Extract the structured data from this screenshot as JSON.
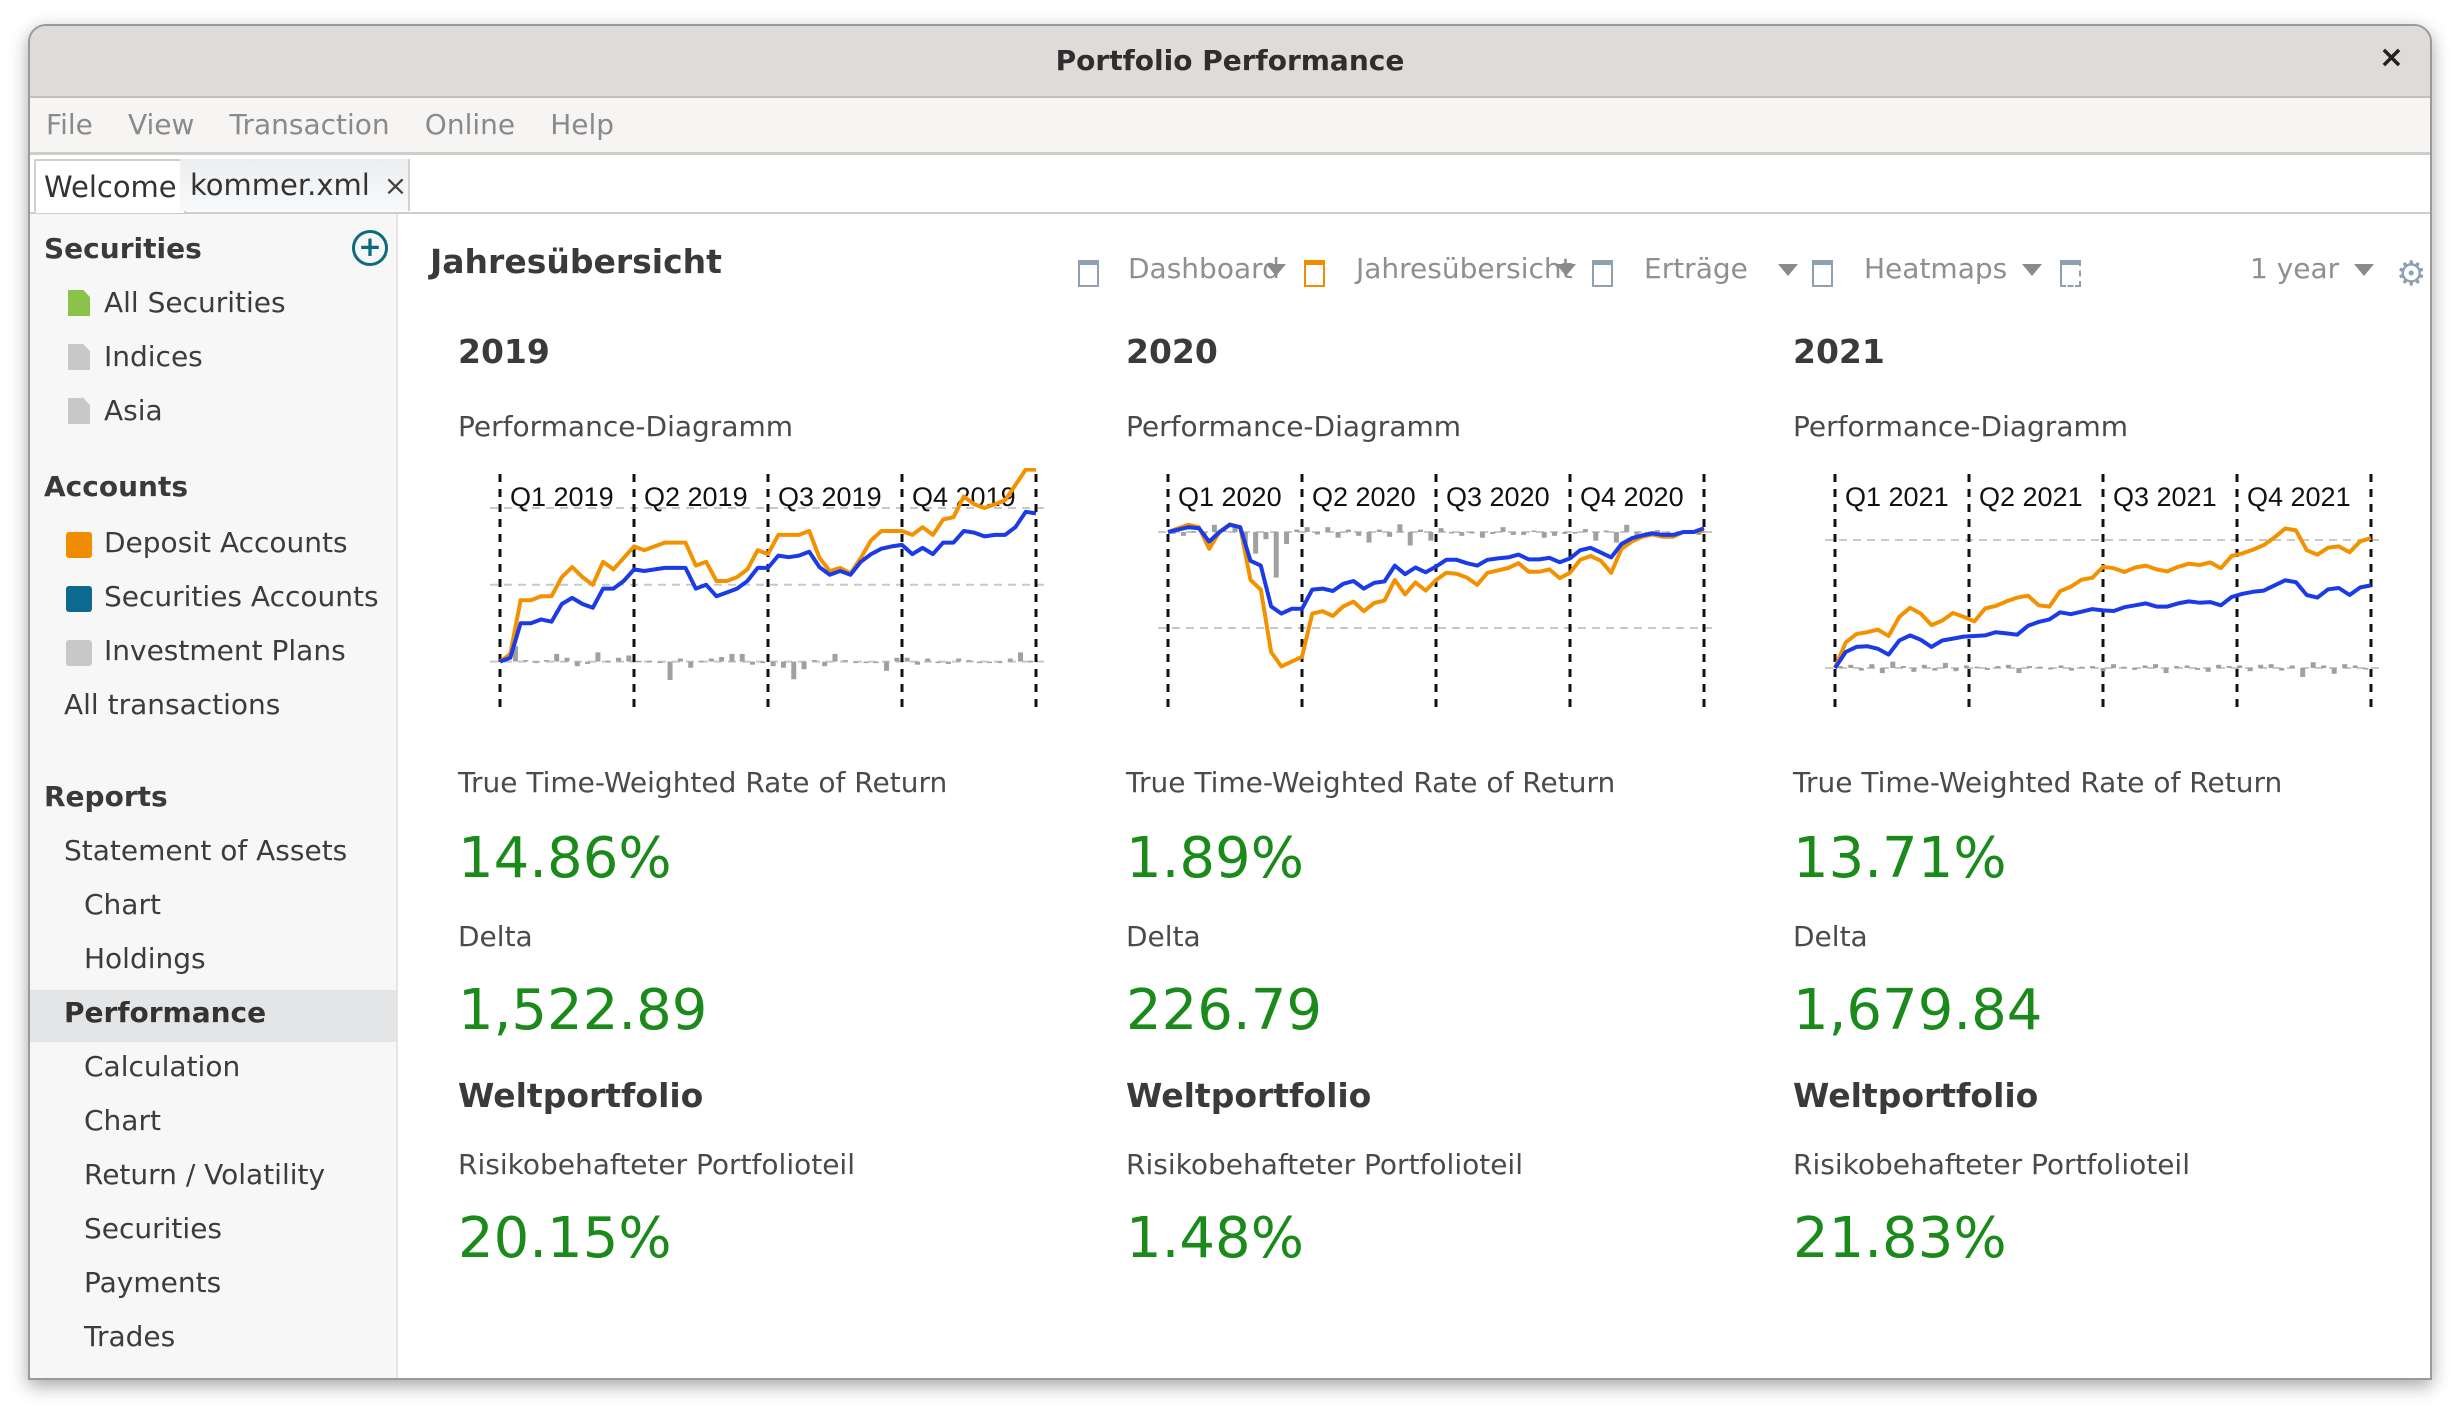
{
  "window": {
    "title": "Portfolio Performance",
    "close_label": "×"
  },
  "menu": [
    "File",
    "View",
    "Transaction",
    "Online",
    "Help"
  ],
  "tabs": [
    {
      "label": "Welcome"
    },
    {
      "label": "kommer.xml",
      "close": "×"
    }
  ],
  "sidebar": {
    "securities_header": "Securities",
    "securities": [
      {
        "label": "All Securities",
        "icon": "document-icon",
        "color": "#8bc34a"
      },
      {
        "label": "Indices",
        "icon": "document-icon",
        "color": "#c8c8c8"
      },
      {
        "label": "Asia",
        "icon": "document-icon",
        "color": "#c8c8c8"
      }
    ],
    "accounts_header": "Accounts",
    "accounts": [
      {
        "label": "Deposit Accounts",
        "icon": "book-icon",
        "color": "#ef8c00"
      },
      {
        "label": "Securities Accounts",
        "icon": "book-icon",
        "color": "#0b6a8e"
      },
      {
        "label": "Investment Plans",
        "icon": "book-icon",
        "color": "#c8c8c8"
      }
    ],
    "all_transactions": "All transactions",
    "reports_header": "Reports",
    "reports": [
      {
        "label": "Statement of Assets",
        "level": 1
      },
      {
        "label": "Chart",
        "level": 2
      },
      {
        "label": "Holdings",
        "level": 2
      },
      {
        "label": "Performance",
        "level": 1,
        "selected": true
      },
      {
        "label": "Calculation",
        "level": 2
      },
      {
        "label": "Chart",
        "level": 2
      },
      {
        "label": "Return / Volatility",
        "level": 2
      },
      {
        "label": "Securities",
        "level": 2
      },
      {
        "label": "Payments",
        "level": 2
      },
      {
        "label": "Trades",
        "level": 2
      }
    ]
  },
  "content": {
    "title": "Jahresübersicht",
    "toolbar": {
      "dashboards": [
        {
          "label": "Dashboard",
          "active": false
        },
        {
          "label": "Jahresübersicht",
          "active": true
        },
        {
          "label": "Erträge",
          "active": false
        },
        {
          "label": "Heatmaps",
          "active": false
        }
      ],
      "add_dashboard_icon": "new-dashboard-icon",
      "period": "1 year",
      "settings_icon": "gear-icon"
    },
    "columns": [
      {
        "year": "2019",
        "chart_label": "Performance-Diagramm",
        "ttwror_label": "True Time-Weighted Rate of Return",
        "ttwror": "14.86%",
        "delta_label": "Delta",
        "delta": "1,522.89",
        "portfolio_name": "Weltportfolio",
        "risk_label": "Risikobehafteter Portfolioteil",
        "risk": "20.15%"
      },
      {
        "year": "2020",
        "chart_label": "Performance-Diagramm",
        "ttwror_label": "True Time-Weighted Rate of Return",
        "ttwror": "1.89%",
        "delta_label": "Delta",
        "delta": "226.79",
        "portfolio_name": "Weltportfolio",
        "risk_label": "Risikobehafteter Portfolioteil",
        "risk": "1.48%"
      },
      {
        "year": "2021",
        "chart_label": "Performance-Diagramm",
        "ttwror_label": "True Time-Weighted Rate of Return",
        "ttwror": "13.71%",
        "delta_label": "Delta",
        "delta": "1,679.84",
        "portfolio_name": "Weltportfolio",
        "risk_label": "Risikobehafteter Portfolioteil",
        "risk": "21.83%"
      }
    ]
  },
  "colors": {
    "orange_series": "#f39200",
    "blue_series": "#1a3be6",
    "bars": "#a0a0a0",
    "value_green": "#1a8a1a",
    "accent_teal": "#0b6a7e"
  },
  "chart_data": [
    {
      "type": "line",
      "title": "Performance-Diagramm 2019",
      "categories": [
        "Q1 2019",
        "Q2 2019",
        "Q3 2019",
        "Q4 2019"
      ],
      "xlabel": "",
      "ylabel": "",
      "grid": "horizontal-dashed",
      "ylim": [
        -5,
        20
      ],
      "gridlines": [
        0,
        10,
        20
      ],
      "series": [
        {
          "name": "Orange series",
          "color": "#f39200",
          "values": [
            0,
            1,
            8,
            8,
            8.5,
            8.5,
            11,
            12.3,
            11,
            10,
            13,
            12,
            13.5,
            15,
            14.5,
            15,
            15.5,
            15.5,
            15.5,
            12.5,
            13,
            10.5,
            10.5,
            11,
            12,
            14.5,
            14,
            16.5,
            16.5,
            16.5,
            17,
            13.5,
            11.8,
            12.2,
            11.5,
            13.5,
            15.8,
            17,
            17,
            17,
            16.5,
            17.5,
            16.5,
            18.5,
            18.8,
            21.5,
            20.5,
            20,
            20.5,
            21,
            23,
            25,
            25
          ]
        },
        {
          "name": "Blue series",
          "color": "#1a3be6",
          "values": [
            0,
            0.5,
            5,
            5,
            5.5,
            5.2,
            7.5,
            8.3,
            7.5,
            7,
            9.5,
            9.5,
            10.5,
            12,
            11.8,
            12,
            12.2,
            12.2,
            12.2,
            9.5,
            10,
            8.5,
            9,
            9.5,
            10.5,
            12.2,
            12.2,
            13.8,
            13.6,
            13.8,
            14.3,
            12.3,
            11.3,
            11.8,
            11.3,
            13,
            14,
            14.7,
            15,
            15.2,
            14,
            14.8,
            14,
            15.5,
            15.5,
            17,
            16.8,
            16.3,
            16.5,
            16.5,
            17.5,
            19.5,
            19.3
          ]
        },
        {
          "name": "Weekly change (bars)",
          "color": "#a0a0a0",
          "values": [
            0.4,
            2,
            0.2,
            0,
            0.2,
            1,
            0.5,
            -0.6,
            -0.3,
            1.2,
            0.1,
            0.5,
            0.8,
            0.1,
            0.1,
            0,
            -2.4,
            0.4,
            -0.8,
            0.1,
            0.4,
            0.6,
            1,
            1,
            -0.4,
            -0.2,
            -0.6,
            -0.8,
            -2.3,
            -1,
            0.2,
            -0.6,
            1,
            0.2,
            0,
            -0.2,
            0,
            -1.2,
            0.5,
            0.5,
            -0.4,
            0.4,
            0,
            -0.3,
            0.4,
            0.2,
            -0.2,
            0,
            0,
            0.4,
            1.2,
            0.1
          ]
        }
      ]
    },
    {
      "type": "line",
      "title": "Performance-Diagramm 2020",
      "categories": [
        "Q1 2020",
        "Q2 2020",
        "Q3 2020",
        "Q4 2020"
      ],
      "xlabel": "",
      "ylabel": "",
      "grid": "horizontal-dashed",
      "ylim": [
        -35,
        5
      ],
      "gridlines": [
        0,
        -20
      ],
      "series": [
        {
          "name": "Orange series",
          "color": "#f39200",
          "values": [
            0,
            0.8,
            1.5,
            1,
            -3.5,
            0,
            1.6,
            1,
            -10,
            -12,
            -25,
            -28,
            -27,
            -26,
            -17,
            -16.5,
            -17.5,
            -15.5,
            -14.5,
            -16.5,
            -14.8,
            -14.3,
            -10,
            -13,
            -10.5,
            -12.2,
            -10,
            -8.5,
            -8.7,
            -9.5,
            -11,
            -8.5,
            -8,
            -7.5,
            -6.5,
            -8.3,
            -8.3,
            -7.8,
            -9.6,
            -8.5,
            -5.8,
            -5,
            -6,
            -8.5,
            -3.5,
            -2,
            -1,
            -0.5,
            -1,
            -1,
            0,
            0,
            0.3
          ]
        },
        {
          "name": "Blue series",
          "color": "#1a3be6",
          "values": [
            0,
            0.5,
            1,
            0.8,
            -2,
            0,
            1.5,
            1,
            -6,
            -7,
            -15.5,
            -17,
            -16,
            -16,
            -12,
            -11.8,
            -12.3,
            -10.8,
            -10.2,
            -11.8,
            -10.6,
            -10.3,
            -7,
            -8.8,
            -7.4,
            -8.4,
            -7.2,
            -5.8,
            -5.8,
            -6.5,
            -7,
            -5.8,
            -5.5,
            -5.3,
            -4.7,
            -5.7,
            -5.7,
            -5.4,
            -6.3,
            -5.5,
            -3.8,
            -3.3,
            -4.3,
            -5.3,
            -2.5,
            -1.3,
            -0.7,
            -0.3,
            -0.6,
            -0.6,
            0,
            0,
            0.8
          ]
        },
        {
          "name": "Weekly change (bars)",
          "color": "#a0a0a0",
          "values": [
            -0.4,
            -0.8,
            0.2,
            -0.8,
            1.5,
            0.3,
            1.2,
            -2.4,
            -4.5,
            -1.5,
            -9.5,
            -2.5,
            0.5,
            1,
            -0.5,
            1,
            -1.2,
            0.5,
            -0.8,
            -2.2,
            0.5,
            -1,
            1.6,
            -2.8,
            0.5,
            -1.8,
            0.8,
            -0.2,
            -0.8,
            -0.2,
            -1.2,
            -0.4,
            1,
            -0.6,
            -0.6,
            0.3,
            -1.2,
            -0.8,
            -0.4,
            -0.2,
            0.6,
            -1.8,
            0.3,
            -2.2,
            1.5,
            -1.5,
            -0.6,
            0.4,
            -0.4,
            -0.4,
            0.2,
            -0.6
          ]
        }
      ]
    },
    {
      "type": "line",
      "title": "Performance-Diagramm 2021",
      "categories": [
        "Q1 2021",
        "Q2 2021",
        "Q3 2021",
        "Q4 2021"
      ],
      "xlabel": "",
      "ylabel": "",
      "grid": "horizontal-dashed",
      "ylim": [
        -5,
        25
      ],
      "gridlines": [
        0,
        20
      ],
      "series": [
        {
          "name": "Orange series",
          "color": "#f39200",
          "values": [
            0,
            4,
            5.3,
            5.6,
            6,
            5,
            8,
            9.4,
            8.5,
            6.7,
            7.4,
            8.6,
            8,
            7.3,
            9.3,
            9.7,
            10.4,
            11,
            11.3,
            9.8,
            9.6,
            12,
            12.7,
            13.8,
            14.1,
            15.8,
            15.6,
            15,
            15.7,
            16,
            15.4,
            15.1,
            15.8,
            16.3,
            16.1,
            16.5,
            15.6,
            17.5,
            17.9,
            18.5,
            19.2,
            20.4,
            21.8,
            21.5,
            18.4,
            17.7,
            18.8,
            19,
            18.1,
            19.8,
            20.3
          ]
        },
        {
          "name": "Blue series",
          "color": "#1a3be6",
          "values": [
            0,
            2.5,
            3.3,
            3.4,
            3,
            2.1,
            4.3,
            5.1,
            4.4,
            3.3,
            4.3,
            4.6,
            4.9,
            5,
            5.1,
            5.6,
            5.4,
            5.2,
            6.6,
            7.2,
            7.6,
            8.7,
            8.4,
            8.8,
            9.2,
            9,
            8.9,
            9.5,
            9.8,
            10.1,
            9.6,
            9.6,
            10.1,
            10.4,
            10.2,
            10.3,
            9.8,
            11.1,
            11.6,
            11.9,
            12.1,
            12.9,
            13.7,
            13.4,
            11.4,
            11,
            12.3,
            12.5,
            11.4,
            12.6,
            12.9
          ]
        },
        {
          "name": "Daily change (bars)",
          "color": "#a0a0a0",
          "values": [
            0.3,
            0.5,
            -0.4,
            0.6,
            -0.8,
            1,
            0.3,
            -0.6,
            0.5,
            -0.4,
            0.8,
            -0.5,
            0.4,
            0.2,
            -0.3,
            0.3,
            0.5,
            -0.8,
            0.3,
            0.2,
            -0.2,
            0.4,
            -0.4,
            0.2,
            0.3,
            -0.5,
            0.6,
            0.2,
            -0.3,
            0.4,
            0.6,
            -0.8,
            0.3,
            0.4,
            -0.3,
            -0.6,
            0.5,
            0.3,
            0.4,
            -0.5,
            0.5,
            0.6,
            -0.4,
            0.4,
            -1.4,
            0.9,
            0.4,
            -0.9,
            0.6,
            0.4,
            -0.2
          ]
        }
      ]
    }
  ]
}
